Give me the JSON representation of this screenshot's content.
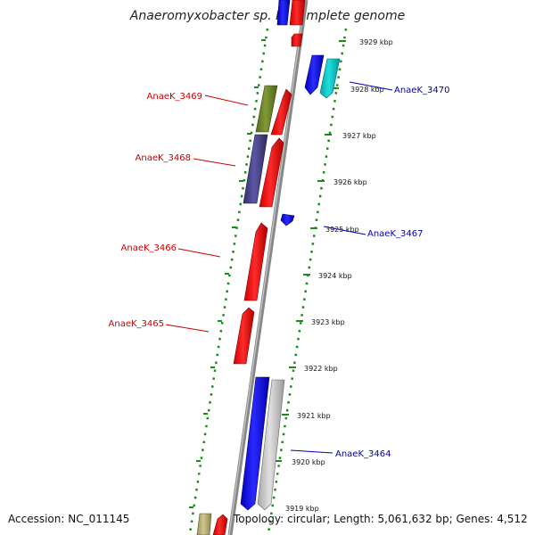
{
  "title": "Anaeromyxobacter sp. K, complete genome",
  "footer": {
    "accession": "Accession: NC_011145",
    "summary": "Topology: circular; Length: 5,061,632 bp; Genes: 4,512"
  },
  "colors": {
    "backbone": "#8a8a8a",
    "ring_dots": "#1a8a1a",
    "label_forward": "#cc0000",
    "label_reverse": "#0000aa"
  },
  "tick_labels": [
    "3929 kbp",
    "3928 kbp",
    "3927 kbp",
    "3926 kbp",
    "3925 kbp",
    "3924 kbp",
    "3923 kbp",
    "3922 kbp",
    "3921 kbp",
    "3920 kbp",
    "3919 kbp"
  ],
  "gene_labels_left": [
    "AnaeK_3469",
    "AnaeK_3468",
    "AnaeK_3466",
    "AnaeK_3465"
  ],
  "gene_labels_right": [
    "AnaeK_3470",
    "AnaeK_3467",
    "AnaeK_3464"
  ]
}
